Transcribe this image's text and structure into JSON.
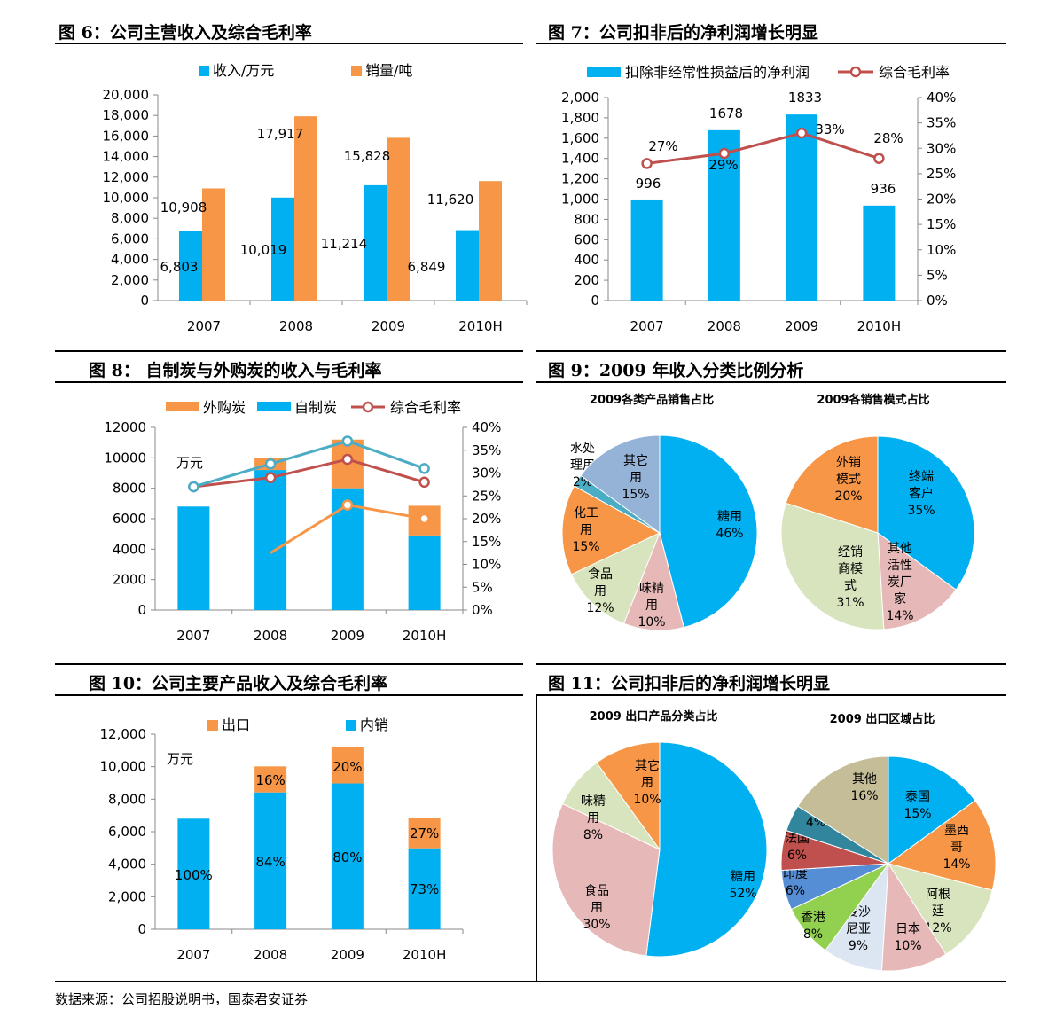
{
  "source": "数据来源：公司招股说明书，国泰君安证券",
  "colors": {
    "blue": "#00B0F0",
    "orange": "#F79646",
    "red": "#C0504D",
    "teal": "#4BACC6",
    "lightgreen": "#D7E4BD",
    "pink": "#E6B9B8",
    "lavender": "#95B3D7",
    "green": "#92D050",
    "grey": "#C4BD97"
  },
  "titles": {
    "fig6": "图 6：公司主营收入及综合毛利率",
    "fig7": "图 7：公司扣非后的净利润增长明显",
    "fig8": "图 8：  自制炭与外购炭的收入与毛利率",
    "fig9": "图 9：2009 年收入分类比例分析",
    "fig10": "图 10：公司主要产品收入及综合毛利率",
    "fig11": "图 11：公司扣非后的净利润增长明显"
  },
  "chart_data": [
    {
      "id": "fig6",
      "type": "bar",
      "categories": [
        "2007",
        "2008",
        "2009",
        "2010H"
      ],
      "series": [
        {
          "name": "收入/万元",
          "values": [
            6803,
            10019,
            11214,
            6849
          ],
          "labels": [
            "6,803",
            "10,019",
            "11,214",
            "6,849"
          ]
        },
        {
          "name": "销量/吨",
          "values": [
            10908,
            17917,
            15828,
            11620
          ],
          "labels": [
            "10,908",
            "17,917",
            "15,828",
            "11,620"
          ]
        }
      ],
      "ylim": [
        0,
        20000
      ],
      "yticks": [
        "0",
        "2,000",
        "4,000",
        "6,000",
        "8,000",
        "10,000",
        "12,000",
        "14,000",
        "16,000",
        "18,000",
        "20,000"
      ],
      "legend": "top"
    },
    {
      "id": "fig7",
      "type": "bar",
      "categories": [
        "2007",
        "2008",
        "2009",
        "2010H"
      ],
      "series": [
        {
          "name": "扣除非经常性损益后的净利润",
          "values": [
            996,
            1678,
            1833,
            936
          ],
          "labels": [
            "996",
            "1678",
            "1833",
            "936"
          ]
        },
        {
          "name": "综合毛利率",
          "type": "line",
          "axis": "right",
          "values": [
            27,
            29,
            33,
            28
          ],
          "labels": [
            "27%",
            "29%",
            "33%",
            "28%"
          ]
        }
      ],
      "ylim": [
        0,
        2000
      ],
      "yticks": [
        "0",
        "200",
        "400",
        "600",
        "800",
        "1,000",
        "1,200",
        "1,400",
        "1,600",
        "1,800",
        "2,000"
      ],
      "y2lim": [
        0,
        40
      ],
      "y2ticks": [
        "0%",
        "5%",
        "10%",
        "15%",
        "20%",
        "25%",
        "30%",
        "35%",
        "40%"
      ],
      "legend": "top"
    },
    {
      "id": "fig8",
      "type": "bar",
      "stacked": true,
      "categories": [
        "2007",
        "2008",
        "2009",
        "2010H"
      ],
      "unit": "万元",
      "series": [
        {
          "name": "自制炭",
          "values": [
            6800,
            9200,
            8000,
            4900
          ]
        },
        {
          "name": "外购炭",
          "values": [
            0,
            800,
            3200,
            1950
          ]
        },
        {
          "name": "综合毛利率",
          "type": "line",
          "axis": "right",
          "values": [
            27,
            29,
            33,
            28
          ]
        },
        {
          "type": "line",
          "axis": "right",
          "color": "teal",
          "values": [
            27,
            32,
            37,
            31
          ]
        },
        {
          "type": "line",
          "axis": "right",
          "color": "orange",
          "values": [
            null,
            12.5,
            23,
            20
          ]
        }
      ],
      "ylim": [
        0,
        12000
      ],
      "yticks": [
        "0",
        "2000",
        "4000",
        "6000",
        "8000",
        "10000",
        "12000"
      ],
      "y2lim": [
        0,
        40
      ],
      "y2ticks": [
        "0%",
        "5%",
        "10%",
        "15%",
        "20%",
        "25%",
        "30%",
        "35%",
        "40%"
      ],
      "legend": "top"
    },
    {
      "id": "fig9a",
      "type": "pie",
      "title": "2009各类产品销售占比",
      "slices": [
        {
          "label": "糖用",
          "value": 46,
          "text": "46%",
          "color": "blue"
        },
        {
          "label": "味精用",
          "value": 10,
          "text": "10%",
          "color": "pink"
        },
        {
          "label": "食品用",
          "value": 12,
          "text": "12%",
          "color": "lightgreen"
        },
        {
          "label": "化工用",
          "value": 15,
          "text": "15%",
          "color": "orange"
        },
        {
          "label": "水处理用",
          "value": 2,
          "text": "2%",
          "color": "teal"
        },
        {
          "label": "其它用",
          "value": 15,
          "text": "15%",
          "color": "lavender"
        }
      ]
    },
    {
      "id": "fig9b",
      "type": "pie",
      "title": "2009各销售模式占比",
      "slices": [
        {
          "label": "终端客户",
          "value": 35,
          "text": "35%",
          "color": "blue"
        },
        {
          "label": "其他活性炭厂家",
          "value": 14,
          "text": "14%",
          "color": "pink"
        },
        {
          "label": "经销商模式",
          "value": 31,
          "text": "31%",
          "color": "lightgreen"
        },
        {
          "label": "外销模式",
          "value": 20,
          "text": "20%",
          "color": "orange"
        }
      ]
    },
    {
      "id": "fig10",
      "type": "bar",
      "stacked": true,
      "categories": [
        "2007",
        "2008",
        "2009",
        "2010H"
      ],
      "unit": "万元",
      "series": [
        {
          "name": "内销",
          "values": [
            6803,
            8416,
            8971,
            4980
          ],
          "labels": [
            "100%",
            "84%",
            "80%",
            "73%"
          ]
        },
        {
          "name": "出口",
          "values": [
            0,
            1603,
            2243,
            1869
          ],
          "labels": [
            "",
            "16%",
            "20%",
            "27%"
          ]
        }
      ],
      "ylim": [
        0,
        12000
      ],
      "yticks": [
        "0",
        "2,000",
        "4,000",
        "6,000",
        "8,000",
        "10,000",
        "12,000"
      ],
      "legend": "top"
    },
    {
      "id": "fig11a",
      "type": "pie",
      "title": "2009 出口产品分类占比",
      "slices": [
        {
          "label": "糖用",
          "value": 52,
          "text": "52%",
          "color": "blue"
        },
        {
          "label": "食品用",
          "value": 30,
          "text": "30%",
          "color": "pink"
        },
        {
          "label": "味精用",
          "value": 8,
          "text": "8%",
          "color": "lightgreen"
        },
        {
          "label": "其它用",
          "value": 10,
          "text": "10%",
          "color": "orange"
        }
      ]
    },
    {
      "id": "fig11b",
      "type": "pie",
      "title": "2009 出口区域占比",
      "slices": [
        {
          "label": "泰国",
          "value": 15,
          "text": "15%",
          "color": "blue"
        },
        {
          "label": "墨西哥",
          "value": 14,
          "text": "14%",
          "color": "orange"
        },
        {
          "label": "阿根廷",
          "value": 12,
          "text": "12%",
          "color": "lightgreen"
        },
        {
          "label": "日本",
          "value": 10,
          "text": "10%",
          "color": "pink"
        },
        {
          "label": "爱沙尼亚",
          "value": 9,
          "text": "9%",
          "color": "#DCE6F2"
        },
        {
          "label": "香港",
          "value": 8,
          "text": "8%",
          "color": "green"
        },
        {
          "label": "印度",
          "value": 6,
          "text": "6%",
          "color": "#558ED5"
        },
        {
          "label": "法国",
          "value": 6,
          "text": "6%",
          "color": "red"
        },
        {
          "label": "韩国",
          "value": 4,
          "text": "4%",
          "color": "#31859C"
        },
        {
          "label": "其他",
          "value": 16,
          "text": "16%",
          "color": "grey"
        }
      ]
    }
  ]
}
